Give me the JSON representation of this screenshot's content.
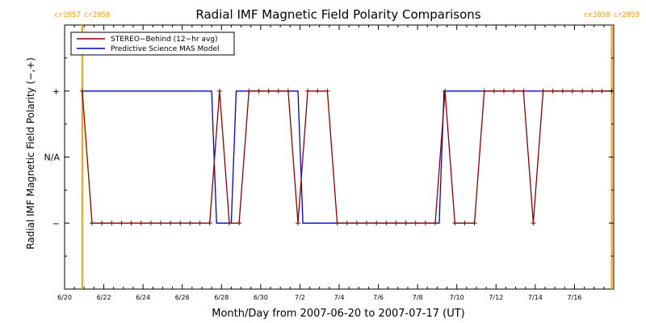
{
  "chart_data": {
    "type": "line",
    "title": "Radial IMF Magnetic Field Polarity Comparisons",
    "xlabel": "Month/Day from 2007-06-20 to 2007-07-17 (UT)",
    "ylabel": "Radial IMF Magnetic Field Polarity (−,+)",
    "x_unit": "days since 2007-06-20 00:00 UT",
    "xlim": [
      0,
      28
    ],
    "ylim": [
      -2,
      2
    ],
    "x_tick_values": [
      0,
      2,
      4,
      6,
      8,
      10,
      12,
      14,
      16,
      18,
      20,
      22,
      24,
      26
    ],
    "x_tick_labels": [
      "6/20",
      "6/22",
      "6/24",
      "6/26",
      "6/28",
      "6/30",
      "7/2",
      "7/4",
      "7/6",
      "7/8",
      "7/10",
      "7/12",
      "7/14",
      "7/16"
    ],
    "y_tick_values": [
      1,
      0,
      -1
    ],
    "y_tick_labels": [
      "+",
      "N/A",
      "−"
    ],
    "carrington_markers": [
      {
        "x": 0.9,
        "left_label": "cr2057",
        "right_label": "cr2058",
        "color": "#FF9900"
      },
      {
        "x": 27.9,
        "left_label": "cr2058",
        "right_label": "cr2059",
        "color": "#FF9900"
      }
    ],
    "legend": {
      "placement": "top-left",
      "entries": [
        {
          "label": "STEREO−Behind (12−hr avg)",
          "color": "#8B0000"
        },
        {
          "label": "Predictive Science MAS Model",
          "color": "#0000CC"
        }
      ]
    },
    "series": [
      {
        "name": "STEREO−Behind (12−hr avg)",
        "color": "#8B0000",
        "markers": "plus",
        "x": [
          0.9,
          1.4,
          1.9,
          2.4,
          2.9,
          3.4,
          3.9,
          4.4,
          4.9,
          5.4,
          5.9,
          6.4,
          6.9,
          7.4,
          7.9,
          8.4,
          8.9,
          9.4,
          9.9,
          10.4,
          10.9,
          11.4,
          11.9,
          12.4,
          12.9,
          13.4,
          13.9,
          14.4,
          14.9,
          15.4,
          15.9,
          16.4,
          16.9,
          17.4,
          17.9,
          18.4,
          18.9,
          19.4,
          19.9,
          20.4,
          20.9,
          21.4,
          21.9,
          22.4,
          22.9,
          23.4,
          23.9,
          24.4,
          24.9,
          25.4,
          25.9,
          26.4,
          26.9,
          27.4,
          27.9
        ],
        "y": [
          1,
          -1,
          -1,
          -1,
          -1,
          -1,
          -1,
          -1,
          -1,
          -1,
          -1,
          -1,
          -1,
          -1,
          1,
          -1,
          -1,
          1,
          1,
          1,
          1,
          1,
          -1,
          1,
          1,
          1,
          -1,
          -1,
          -1,
          -1,
          -1,
          -1,
          -1,
          -1,
          -1,
          -1,
          -1,
          1,
          -1,
          -1,
          -1,
          1,
          1,
          1,
          1,
          1,
          -1,
          1,
          1,
          1,
          1,
          1,
          1,
          1,
          1
        ]
      },
      {
        "name": "Predictive Science MAS Model",
        "color": "#0000CC",
        "markers": "none",
        "x": [
          0.9,
          7.5,
          7.75,
          8.5,
          8.75,
          11.9,
          12.15,
          19.1,
          19.35,
          27.9
        ],
        "y": [
          1,
          1,
          -1,
          -1,
          1,
          1,
          -1,
          -1,
          1,
          1
        ]
      }
    ]
  }
}
